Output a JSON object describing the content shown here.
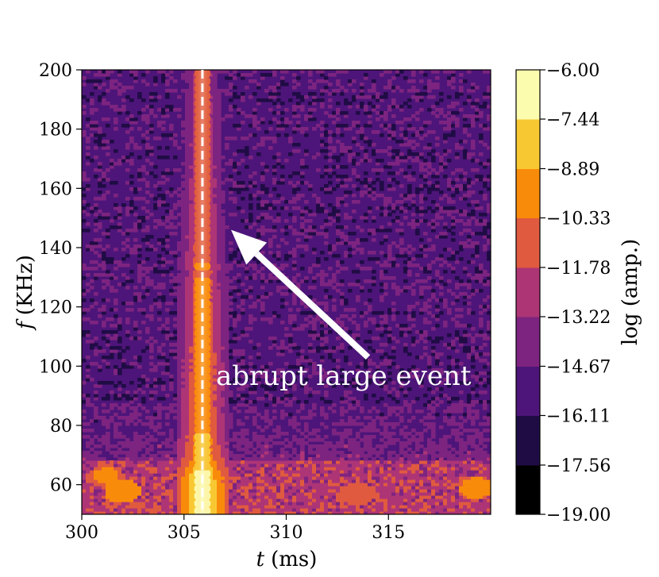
{
  "chart_data": {
    "type": "heatmap",
    "title": "",
    "xlabel": {
      "var": "t",
      "unit": "(ms)"
    },
    "ylabel": {
      "var": "f",
      "unit": "(KHz)"
    },
    "xlim": [
      300,
      320
    ],
    "ylim": [
      50,
      200
    ],
    "xticks": [
      {
        "value": 300,
        "label": "300"
      },
      {
        "value": 305,
        "label": "305"
      },
      {
        "value": 310,
        "label": "310"
      },
      {
        "value": 315,
        "label": "315"
      }
    ],
    "yticks": [
      {
        "value": 60,
        "label": "60"
      },
      {
        "value": 80,
        "label": "80"
      },
      {
        "value": 100,
        "label": "100"
      },
      {
        "value": 120,
        "label": "120"
      },
      {
        "value": 140,
        "label": "140"
      },
      {
        "value": 160,
        "label": "160"
      },
      {
        "value": 180,
        "label": "180"
      },
      {
        "value": 200,
        "label": "200"
      }
    ],
    "colorbar": {
      "label": "log (amp.)",
      "range": [
        -19.0,
        -6.0
      ],
      "levels": [
        {
          "value": -19.0,
          "label": "−19.00"
        },
        {
          "value": -17.56,
          "label": "−17.56"
        },
        {
          "value": -16.11,
          "label": "−16.11"
        },
        {
          "value": -14.67,
          "label": "−14.67"
        },
        {
          "value": -13.22,
          "label": "−13.22"
        },
        {
          "value": -11.78,
          "label": "−11.78"
        },
        {
          "value": -10.33,
          "label": "−10.33"
        },
        {
          "value": -8.89,
          "label": "−8.89"
        },
        {
          "value": -7.44,
          "label": "−7.44"
        },
        {
          "value": -6.0,
          "label": "−6.00"
        }
      ],
      "colors": [
        "#000004",
        "#1c1044",
        "#4f127b",
        "#812581",
        "#b5367a",
        "#e55964",
        "#fb8761",
        "#fec287",
        "#fcfdbf"
      ],
      "colors_observed": [
        "#000000",
        "#200c45",
        "#4d1579",
        "#7d2480",
        "#ad3576",
        "#e05a3f",
        "#f98b0b",
        "#f8c833",
        "#fcfcae"
      ]
    },
    "background_level": -15.3,
    "event": {
      "time_ms": 305.9,
      "marker_line_style": "dashed",
      "marker_line_color": "#ffffff",
      "band_half_width_ms": 0.4,
      "profile": [
        {
          "f": 50,
          "level": -6.5
        },
        {
          "f": 55,
          "level": -6.3
        },
        {
          "f": 62,
          "level": -6.5
        },
        {
          "f": 70,
          "level": -8.5
        },
        {
          "f": 80,
          "level": -9.2
        },
        {
          "f": 100,
          "level": -9.6
        },
        {
          "f": 120,
          "level": -10.0
        },
        {
          "f": 140,
          "level": -10.5
        },
        {
          "f": 160,
          "level": -11.0
        },
        {
          "f": 180,
          "level": -11.4
        },
        {
          "f": 200,
          "level": -11.8
        }
      ]
    },
    "low_freq_band": {
      "f_max": 68,
      "level": -12.2,
      "hotspots": [
        {
          "t": 301.2,
          "f": 63,
          "level": -10.5
        },
        {
          "t": 302.0,
          "f": 58,
          "level": -10.3
        },
        {
          "t": 313.5,
          "f": 57,
          "level": -11.0
        },
        {
          "t": 319.3,
          "f": 59,
          "level": -10.4
        }
      ]
    },
    "annotations": [
      {
        "text": "abrupt large event",
        "color": "#ffffff",
        "arrow_from": {
          "t": 314.0,
          "f": 103
        },
        "arrow_to": {
          "t": 307.3,
          "f": 146
        }
      }
    ]
  }
}
